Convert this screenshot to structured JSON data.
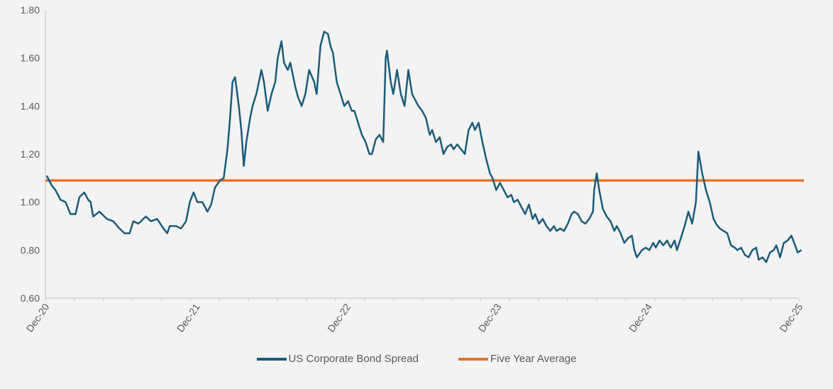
{
  "chart_data": {
    "type": "line",
    "title": "",
    "xlabel": "",
    "ylabel": "",
    "ylim": [
      0.6,
      1.8
    ],
    "xlim_months_since_dec20": [
      0,
      60.4
    ],
    "grid": false,
    "legend_position": "bottom",
    "y_ticks": [
      "0.60",
      "0.80",
      "1.00",
      "1.20",
      "1.40",
      "1.60",
      "1.80"
    ],
    "x_ticks": [
      {
        "label": "Dec-20",
        "month": 0
      },
      {
        "label": "Dec-21",
        "month": 12
      },
      {
        "label": "Dec-22",
        "month": 24
      },
      {
        "label": "Dec-23",
        "month": 36
      },
      {
        "label": "Dec-24",
        "month": 48
      },
      {
        "label": "Dec-25",
        "month": 60
      }
    ],
    "series": [
      {
        "name": "US Corporate Bond Spread",
        "color": "#1b5b7a",
        "points": [
          [
            0.1,
            1.11
          ],
          [
            0.5,
            1.07
          ],
          [
            0.8,
            1.05
          ],
          [
            1.2,
            1.01
          ],
          [
            1.6,
            1.0
          ],
          [
            2.0,
            0.95
          ],
          [
            2.4,
            0.95
          ],
          [
            2.7,
            1.02
          ],
          [
            3.1,
            1.04
          ],
          [
            3.4,
            1.01
          ],
          [
            3.6,
            1.0
          ],
          [
            3.8,
            0.94
          ],
          [
            4.3,
            0.96
          ],
          [
            4.9,
            0.93
          ],
          [
            5.4,
            0.92
          ],
          [
            5.9,
            0.89
          ],
          [
            6.3,
            0.87
          ],
          [
            6.7,
            0.87
          ],
          [
            7.0,
            0.92
          ],
          [
            7.4,
            0.91
          ],
          [
            8.0,
            0.94
          ],
          [
            8.4,
            0.92
          ],
          [
            8.9,
            0.93
          ],
          [
            9.4,
            0.89
          ],
          [
            9.7,
            0.87
          ],
          [
            9.9,
            0.9
          ],
          [
            10.4,
            0.9
          ],
          [
            10.8,
            0.89
          ],
          [
            11.2,
            0.92
          ],
          [
            11.5,
            1.0
          ],
          [
            11.8,
            1.04
          ],
          [
            12.1,
            1.0
          ],
          [
            12.5,
            1.0
          ],
          [
            12.9,
            0.96
          ],
          [
            13.2,
            0.99
          ],
          [
            13.5,
            1.06
          ],
          [
            13.9,
            1.09
          ],
          [
            14.2,
            1.1
          ],
          [
            14.5,
            1.22
          ],
          [
            14.7,
            1.35
          ],
          [
            14.9,
            1.5
          ],
          [
            15.1,
            1.52
          ],
          [
            15.4,
            1.4
          ],
          [
            15.6,
            1.3
          ],
          [
            15.8,
            1.15
          ],
          [
            16.0,
            1.25
          ],
          [
            16.3,
            1.35
          ],
          [
            16.5,
            1.4
          ],
          [
            16.8,
            1.45
          ],
          [
            17.2,
            1.55
          ],
          [
            17.4,
            1.5
          ],
          [
            17.7,
            1.38
          ],
          [
            18.0,
            1.45
          ],
          [
            18.3,
            1.5
          ],
          [
            18.5,
            1.6
          ],
          [
            18.8,
            1.67
          ],
          [
            19.0,
            1.58
          ],
          [
            19.3,
            1.55
          ],
          [
            19.5,
            1.58
          ],
          [
            19.9,
            1.48
          ],
          [
            20.1,
            1.44
          ],
          [
            20.4,
            1.4
          ],
          [
            20.7,
            1.45
          ],
          [
            21.0,
            1.55
          ],
          [
            21.4,
            1.5
          ],
          [
            21.6,
            1.45
          ],
          [
            21.9,
            1.65
          ],
          [
            22.2,
            1.71
          ],
          [
            22.5,
            1.7
          ],
          [
            22.7,
            1.65
          ],
          [
            22.9,
            1.62
          ],
          [
            23.2,
            1.5
          ],
          [
            23.5,
            1.45
          ],
          [
            23.8,
            1.4
          ],
          [
            24.1,
            1.42
          ],
          [
            24.4,
            1.38
          ],
          [
            24.6,
            1.38
          ],
          [
            24.9,
            1.33
          ],
          [
            25.2,
            1.28
          ],
          [
            25.5,
            1.25
          ],
          [
            25.8,
            1.2
          ],
          [
            26.0,
            1.2
          ],
          [
            26.3,
            1.26
          ],
          [
            26.6,
            1.28
          ],
          [
            26.9,
            1.25
          ],
          [
            27.1,
            1.6
          ],
          [
            27.2,
            1.63
          ],
          [
            27.5,
            1.5
          ],
          [
            27.7,
            1.45
          ],
          [
            28.0,
            1.55
          ],
          [
            28.3,
            1.45
          ],
          [
            28.6,
            1.4
          ],
          [
            28.9,
            1.55
          ],
          [
            29.2,
            1.45
          ],
          [
            29.4,
            1.43
          ],
          [
            29.7,
            1.4
          ],
          [
            30.0,
            1.38
          ],
          [
            30.3,
            1.35
          ],
          [
            30.6,
            1.28
          ],
          [
            30.8,
            1.3
          ],
          [
            31.1,
            1.25
          ],
          [
            31.4,
            1.27
          ],
          [
            31.7,
            1.2
          ],
          [
            32.0,
            1.23
          ],
          [
            32.3,
            1.24
          ],
          [
            32.5,
            1.22
          ],
          [
            32.8,
            1.24
          ],
          [
            33.1,
            1.22
          ],
          [
            33.4,
            1.2
          ],
          [
            33.7,
            1.3
          ],
          [
            34.0,
            1.33
          ],
          [
            34.2,
            1.3
          ],
          [
            34.5,
            1.33
          ],
          [
            34.8,
            1.25
          ],
          [
            35.1,
            1.18
          ],
          [
            35.4,
            1.12
          ],
          [
            35.6,
            1.1
          ],
          [
            35.9,
            1.05
          ],
          [
            36.2,
            1.08
          ],
          [
            36.5,
            1.05
          ],
          [
            36.8,
            1.02
          ],
          [
            37.1,
            1.03
          ],
          [
            37.3,
            1.0
          ],
          [
            37.6,
            1.01
          ],
          [
            37.9,
            0.98
          ],
          [
            38.2,
            0.95
          ],
          [
            38.5,
            0.99
          ],
          [
            38.8,
            0.93
          ],
          [
            39.0,
            0.95
          ],
          [
            39.3,
            0.91
          ],
          [
            39.6,
            0.93
          ],
          [
            39.9,
            0.9
          ],
          [
            40.2,
            0.88
          ],
          [
            40.5,
            0.9
          ],
          [
            40.7,
            0.88
          ],
          [
            41.0,
            0.89
          ],
          [
            41.3,
            0.88
          ],
          [
            41.6,
            0.91
          ],
          [
            41.9,
            0.95
          ],
          [
            42.1,
            0.96
          ],
          [
            42.4,
            0.95
          ],
          [
            42.7,
            0.92
          ],
          [
            43.0,
            0.91
          ],
          [
            43.3,
            0.93
          ],
          [
            43.6,
            0.96
          ],
          [
            43.7,
            1.05
          ],
          [
            43.9,
            1.12
          ],
          [
            44.1,
            1.05
          ],
          [
            44.4,
            0.97
          ],
          [
            44.7,
            0.94
          ],
          [
            45.0,
            0.92
          ],
          [
            45.3,
            0.88
          ],
          [
            45.5,
            0.9
          ],
          [
            45.8,
            0.87
          ],
          [
            46.1,
            0.83
          ],
          [
            46.4,
            0.85
          ],
          [
            46.7,
            0.86
          ],
          [
            46.9,
            0.8
          ],
          [
            47.1,
            0.77
          ],
          [
            47.5,
            0.8
          ],
          [
            47.8,
            0.81
          ],
          [
            48.1,
            0.8
          ],
          [
            48.4,
            0.83
          ],
          [
            48.6,
            0.81
          ],
          [
            48.9,
            0.84
          ],
          [
            49.2,
            0.82
          ],
          [
            49.5,
            0.84
          ],
          [
            49.8,
            0.81
          ],
          [
            50.1,
            0.84
          ],
          [
            50.3,
            0.8
          ],
          [
            50.6,
            0.85
          ],
          [
            50.9,
            0.9
          ],
          [
            51.2,
            0.96
          ],
          [
            51.5,
            0.91
          ],
          [
            51.8,
            1.0
          ],
          [
            52.0,
            1.21
          ],
          [
            52.1,
            1.18
          ],
          [
            52.3,
            1.12
          ],
          [
            52.6,
            1.05
          ],
          [
            52.9,
            1.0
          ],
          [
            53.2,
            0.93
          ],
          [
            53.4,
            0.91
          ],
          [
            53.7,
            0.89
          ],
          [
            54.0,
            0.88
          ],
          [
            54.3,
            0.87
          ],
          [
            54.6,
            0.82
          ],
          [
            54.9,
            0.81
          ],
          [
            55.1,
            0.8
          ],
          [
            55.4,
            0.81
          ],
          [
            55.7,
            0.78
          ],
          [
            56.0,
            0.77
          ],
          [
            56.3,
            0.8
          ],
          [
            56.6,
            0.81
          ],
          [
            56.8,
            0.76
          ],
          [
            57.1,
            0.77
          ],
          [
            57.4,
            0.75
          ],
          [
            57.7,
            0.79
          ],
          [
            58.0,
            0.8
          ],
          [
            58.2,
            0.82
          ],
          [
            58.5,
            0.77
          ],
          [
            58.8,
            0.83
          ],
          [
            59.1,
            0.84
          ],
          [
            59.4,
            0.86
          ],
          [
            59.7,
            0.82
          ],
          [
            59.9,
            0.79
          ],
          [
            60.2,
            0.8
          ]
        ]
      },
      {
        "name": "Five Year Average",
        "color": "#e8732d",
        "value": 1.09
      }
    ]
  }
}
